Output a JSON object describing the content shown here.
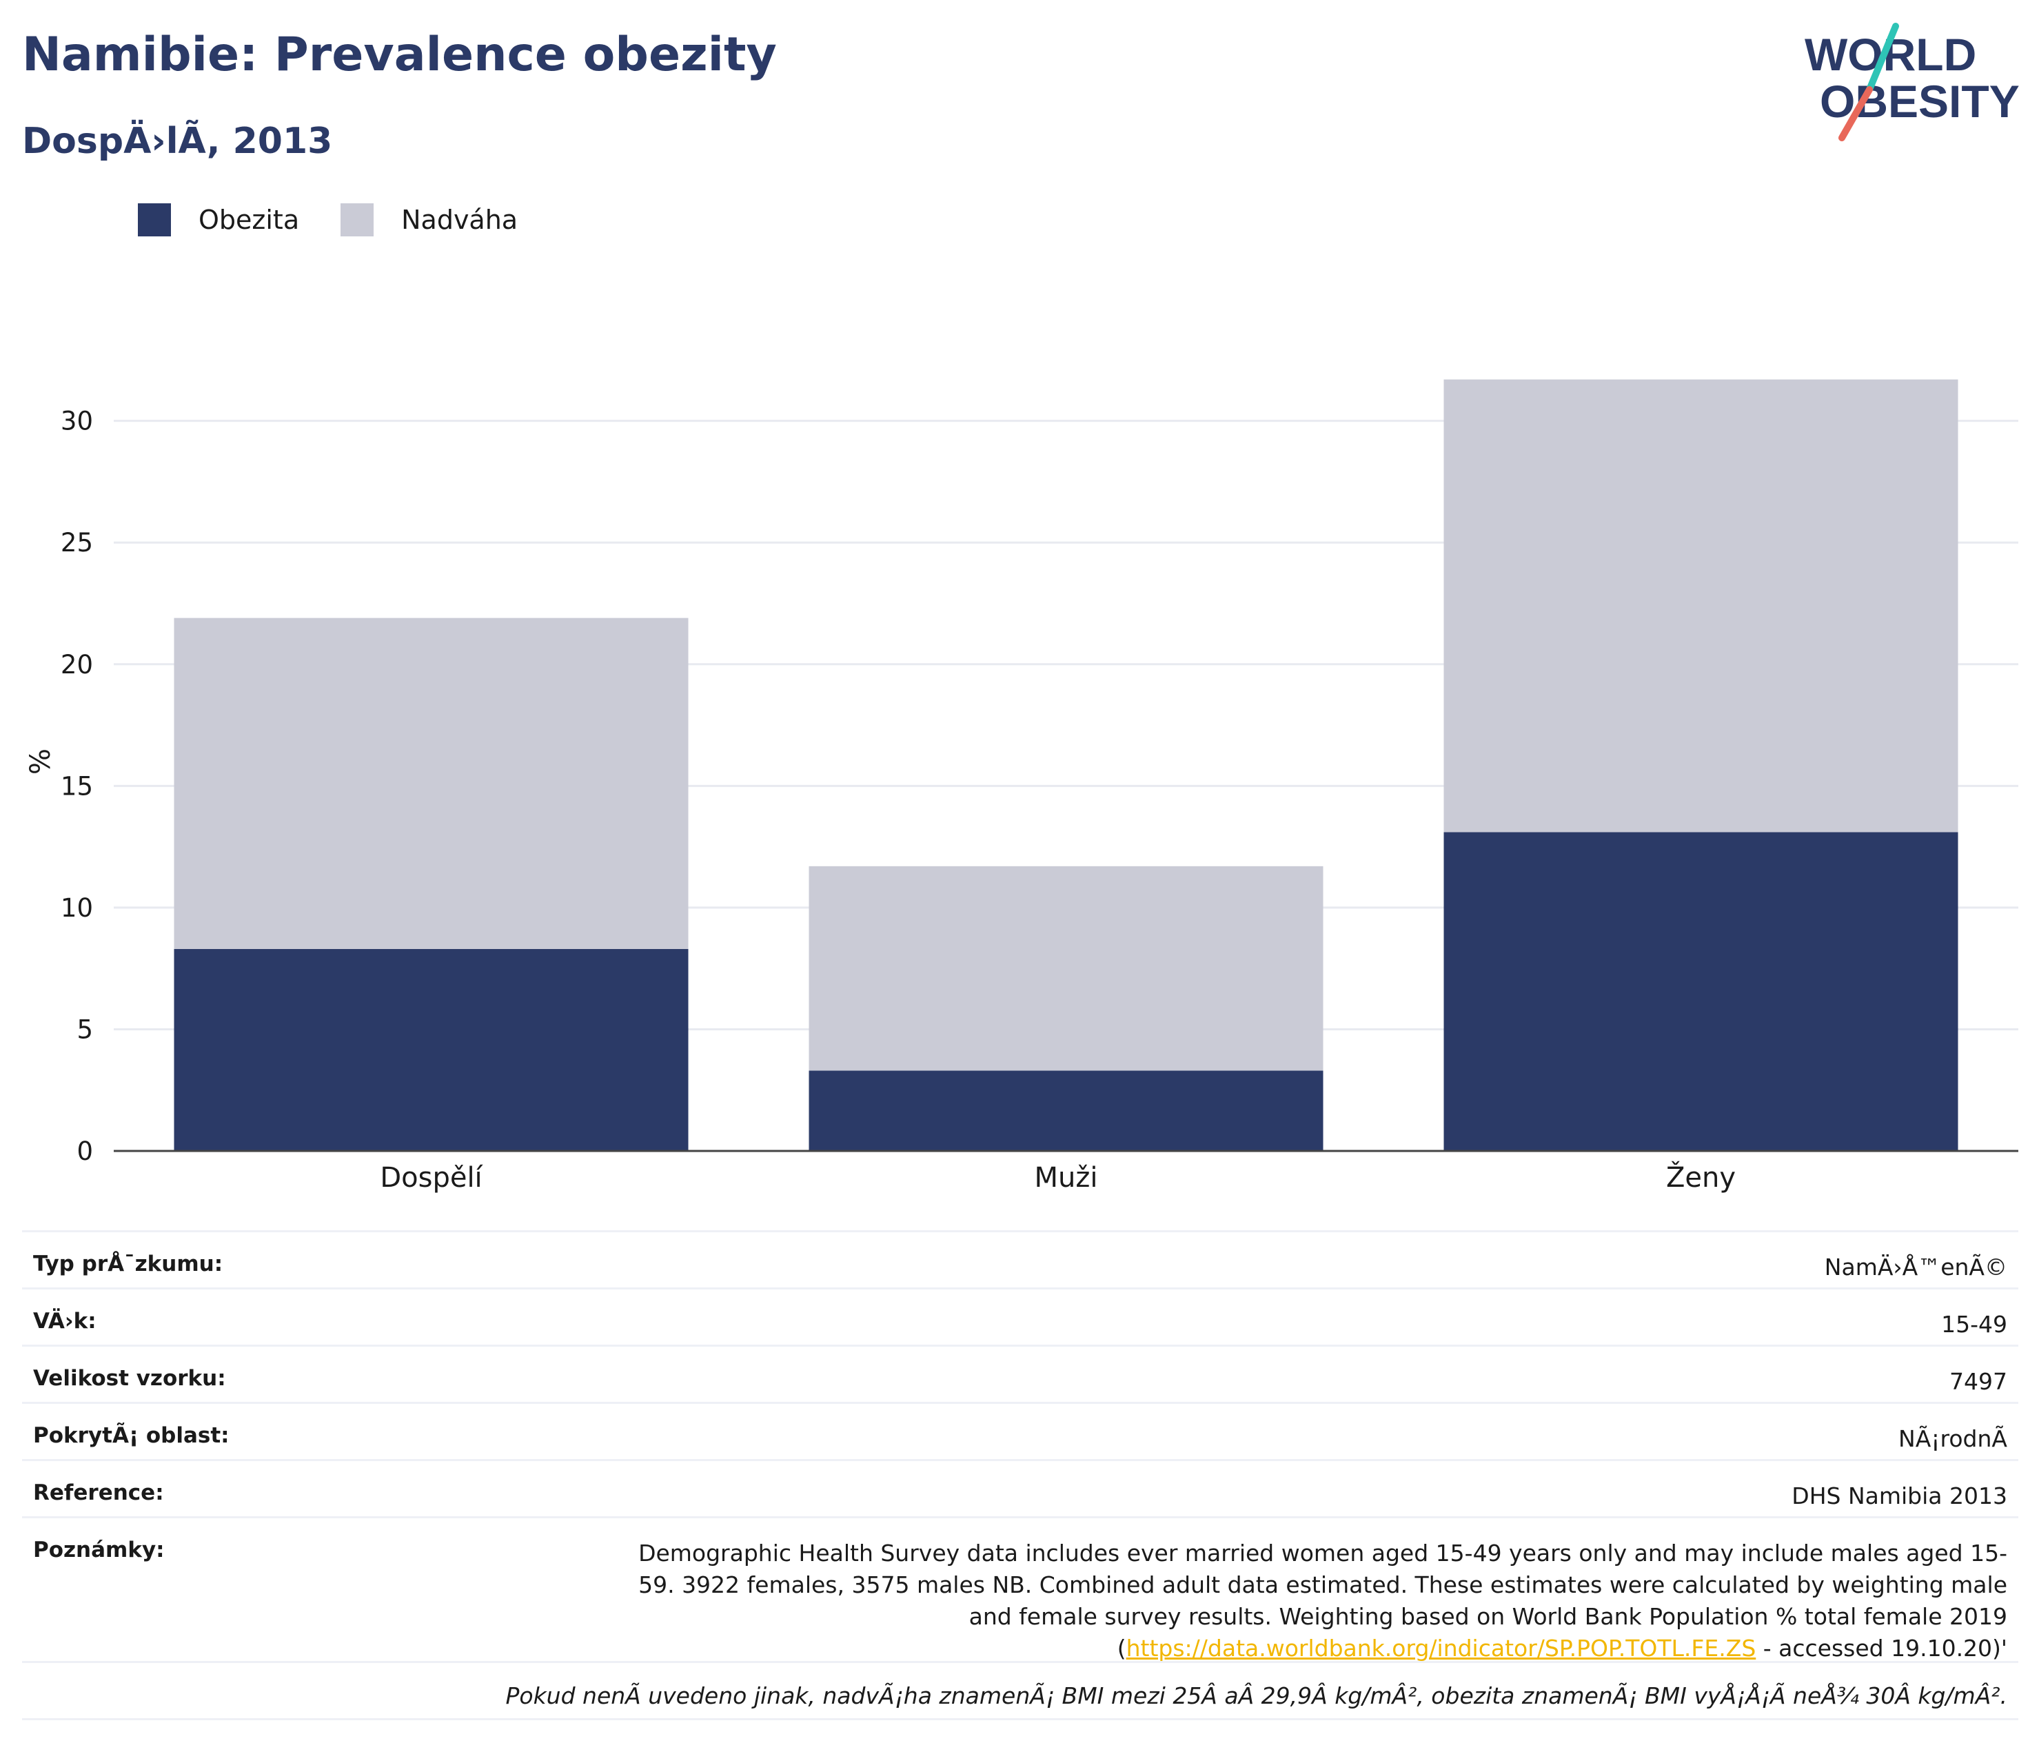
{
  "title": "Namibie: Prevalence obezity",
  "subtitle": "DospÄ›lÃ, 2013",
  "logo": {
    "line1": "WORLD",
    "line2": "OBESITY",
    "colors": {
      "text": "#2b3a67",
      "accent_teal": "#2ec4b6",
      "accent_red": "#e8685a"
    }
  },
  "legend": [
    {
      "label": "Obezita",
      "color": "#2b3a67"
    },
    {
      "label": "Nadváha",
      "color": "#cacbd6"
    }
  ],
  "chart_data": {
    "type": "bar",
    "stacked": true,
    "categories": [
      "Dospělí",
      "Muži",
      "Ženy"
    ],
    "series": [
      {
        "name": "Obezita",
        "values": [
          8.3,
          3.3,
          13.1
        ],
        "color": "#2b3a67"
      },
      {
        "name": "Nadváha",
        "values": [
          13.6,
          8.4,
          18.6
        ],
        "color": "#cacbd6"
      }
    ],
    "ylabel": "%",
    "ylim": [
      0,
      32
    ],
    "yticks": [
      0,
      5,
      10,
      15,
      20,
      25,
      30
    ],
    "grid": true,
    "legend_position": "top-left"
  },
  "info": [
    {
      "key": "Typ prÅ¯zkumu:",
      "value": "NamÄ›Å™enÃ©"
    },
    {
      "key": "VÄ›k:",
      "value": "15-49"
    },
    {
      "key": "Velikost vzorku:",
      "value": "7497"
    },
    {
      "key": "PokrytÃ¡ oblast:",
      "value": "NÃ¡rodnÃ"
    },
    {
      "key": "Reference:",
      "value": "DHS Namibia 2013"
    }
  ],
  "notes": {
    "key": "Poznámky:",
    "text_before": "Demographic Health Survey data includes ever married women aged 15-49 years only and may include males aged 15-59. 3922 females, 3575 males NB. Combined adult data estimated. These estimates were calculated by weighting male and female survey results. Weighting based on World Bank Population % total female 2019 (",
    "link": "https://data.worldbank.org/indicator/SP.POP.TOTL.FE.ZS",
    "text_after": " - accessed 19.10.20)'"
  },
  "footnote": "Pokud nenÃ uvedeno jinak, nadvÃ¡ha znamenÃ¡ BMI mezi 25Â aÂ 29,9Â kg/mÂ², obezita znamenÃ¡ BMI vyÅ¡Å¡Ã neÅ¾ 30Â kg/mÂ²."
}
